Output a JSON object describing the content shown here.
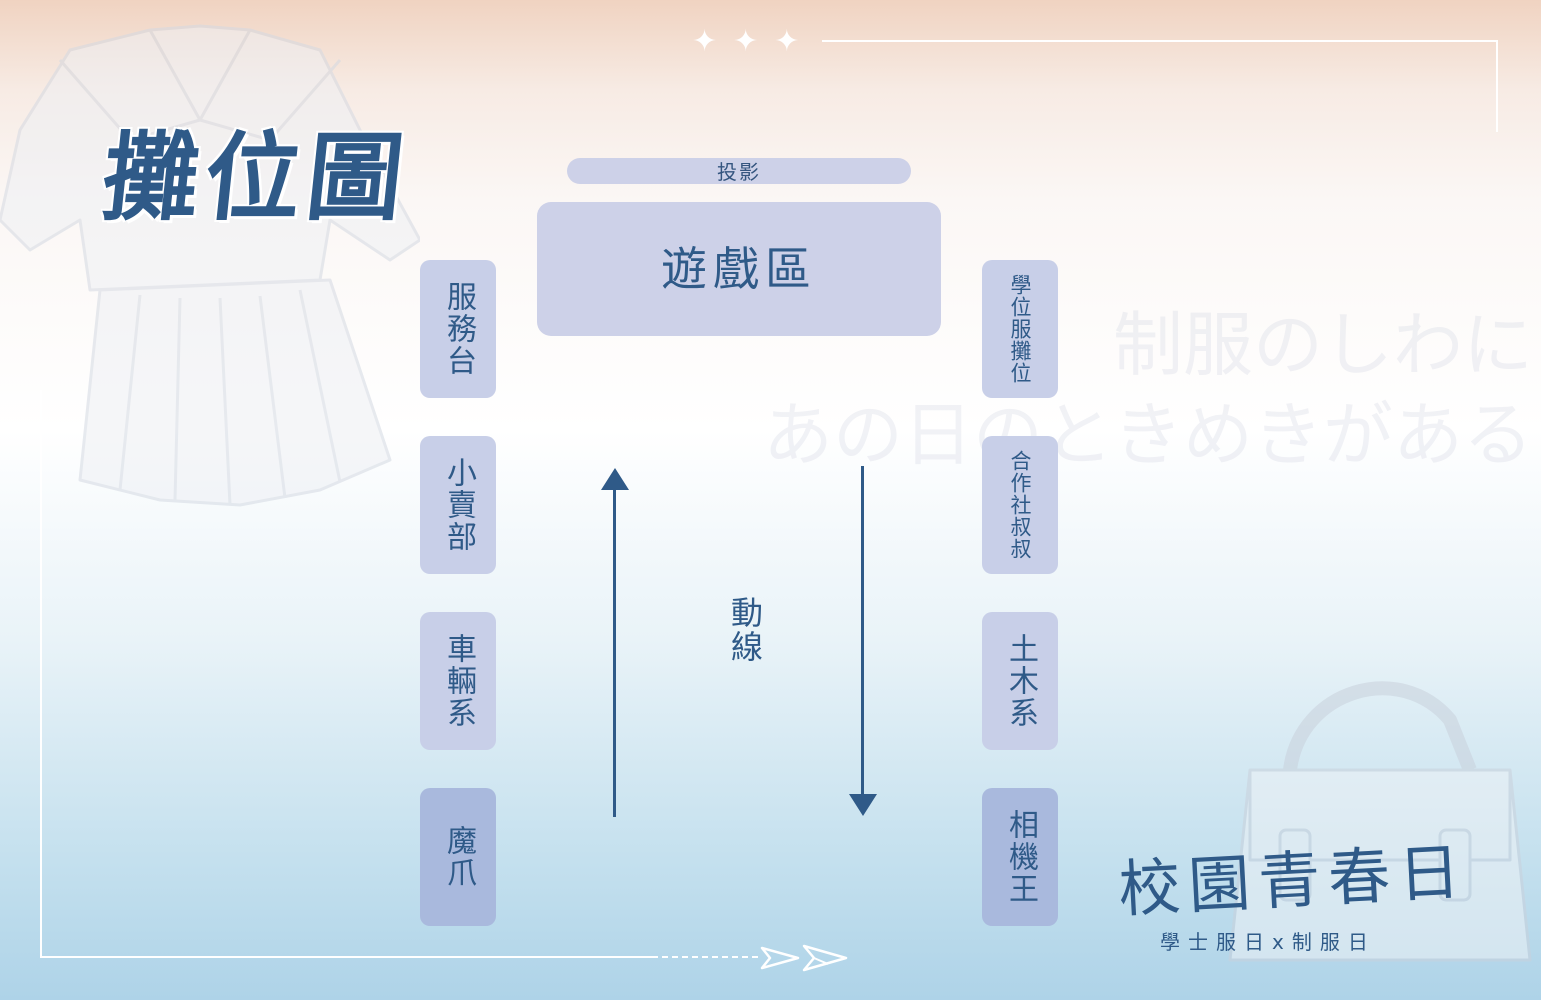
{
  "title": "攤位圖",
  "background_text": {
    "line1": "制服のしわに",
    "line2": "あの日のときめきがある"
  },
  "projection": {
    "label": "投影"
  },
  "game_area": {
    "label": "遊戲區"
  },
  "left_booths": [
    {
      "label": "服務台"
    },
    {
      "label": "小賣部"
    },
    {
      "label": "車輛系"
    },
    {
      "label": "魔爪"
    }
  ],
  "right_booths": [
    {
      "label": "學位服攤位"
    },
    {
      "label": "合作社叔叔"
    },
    {
      "label": "土木系"
    },
    {
      "label": "相機王"
    }
  ],
  "flow": {
    "label": "動線"
  },
  "logo": {
    "main": "校園青春日",
    "sub": "學士服日x制服日"
  },
  "colors": {
    "accent": "#2f5a88",
    "booth": "#c8cfe8",
    "booth_dark": "#a9b9dd"
  },
  "icons": {
    "uniform": "sailor-uniform-illustration",
    "bag": "school-bag-illustration",
    "plane": "paper-plane-icon",
    "sparkle": "sparkle-icon"
  }
}
